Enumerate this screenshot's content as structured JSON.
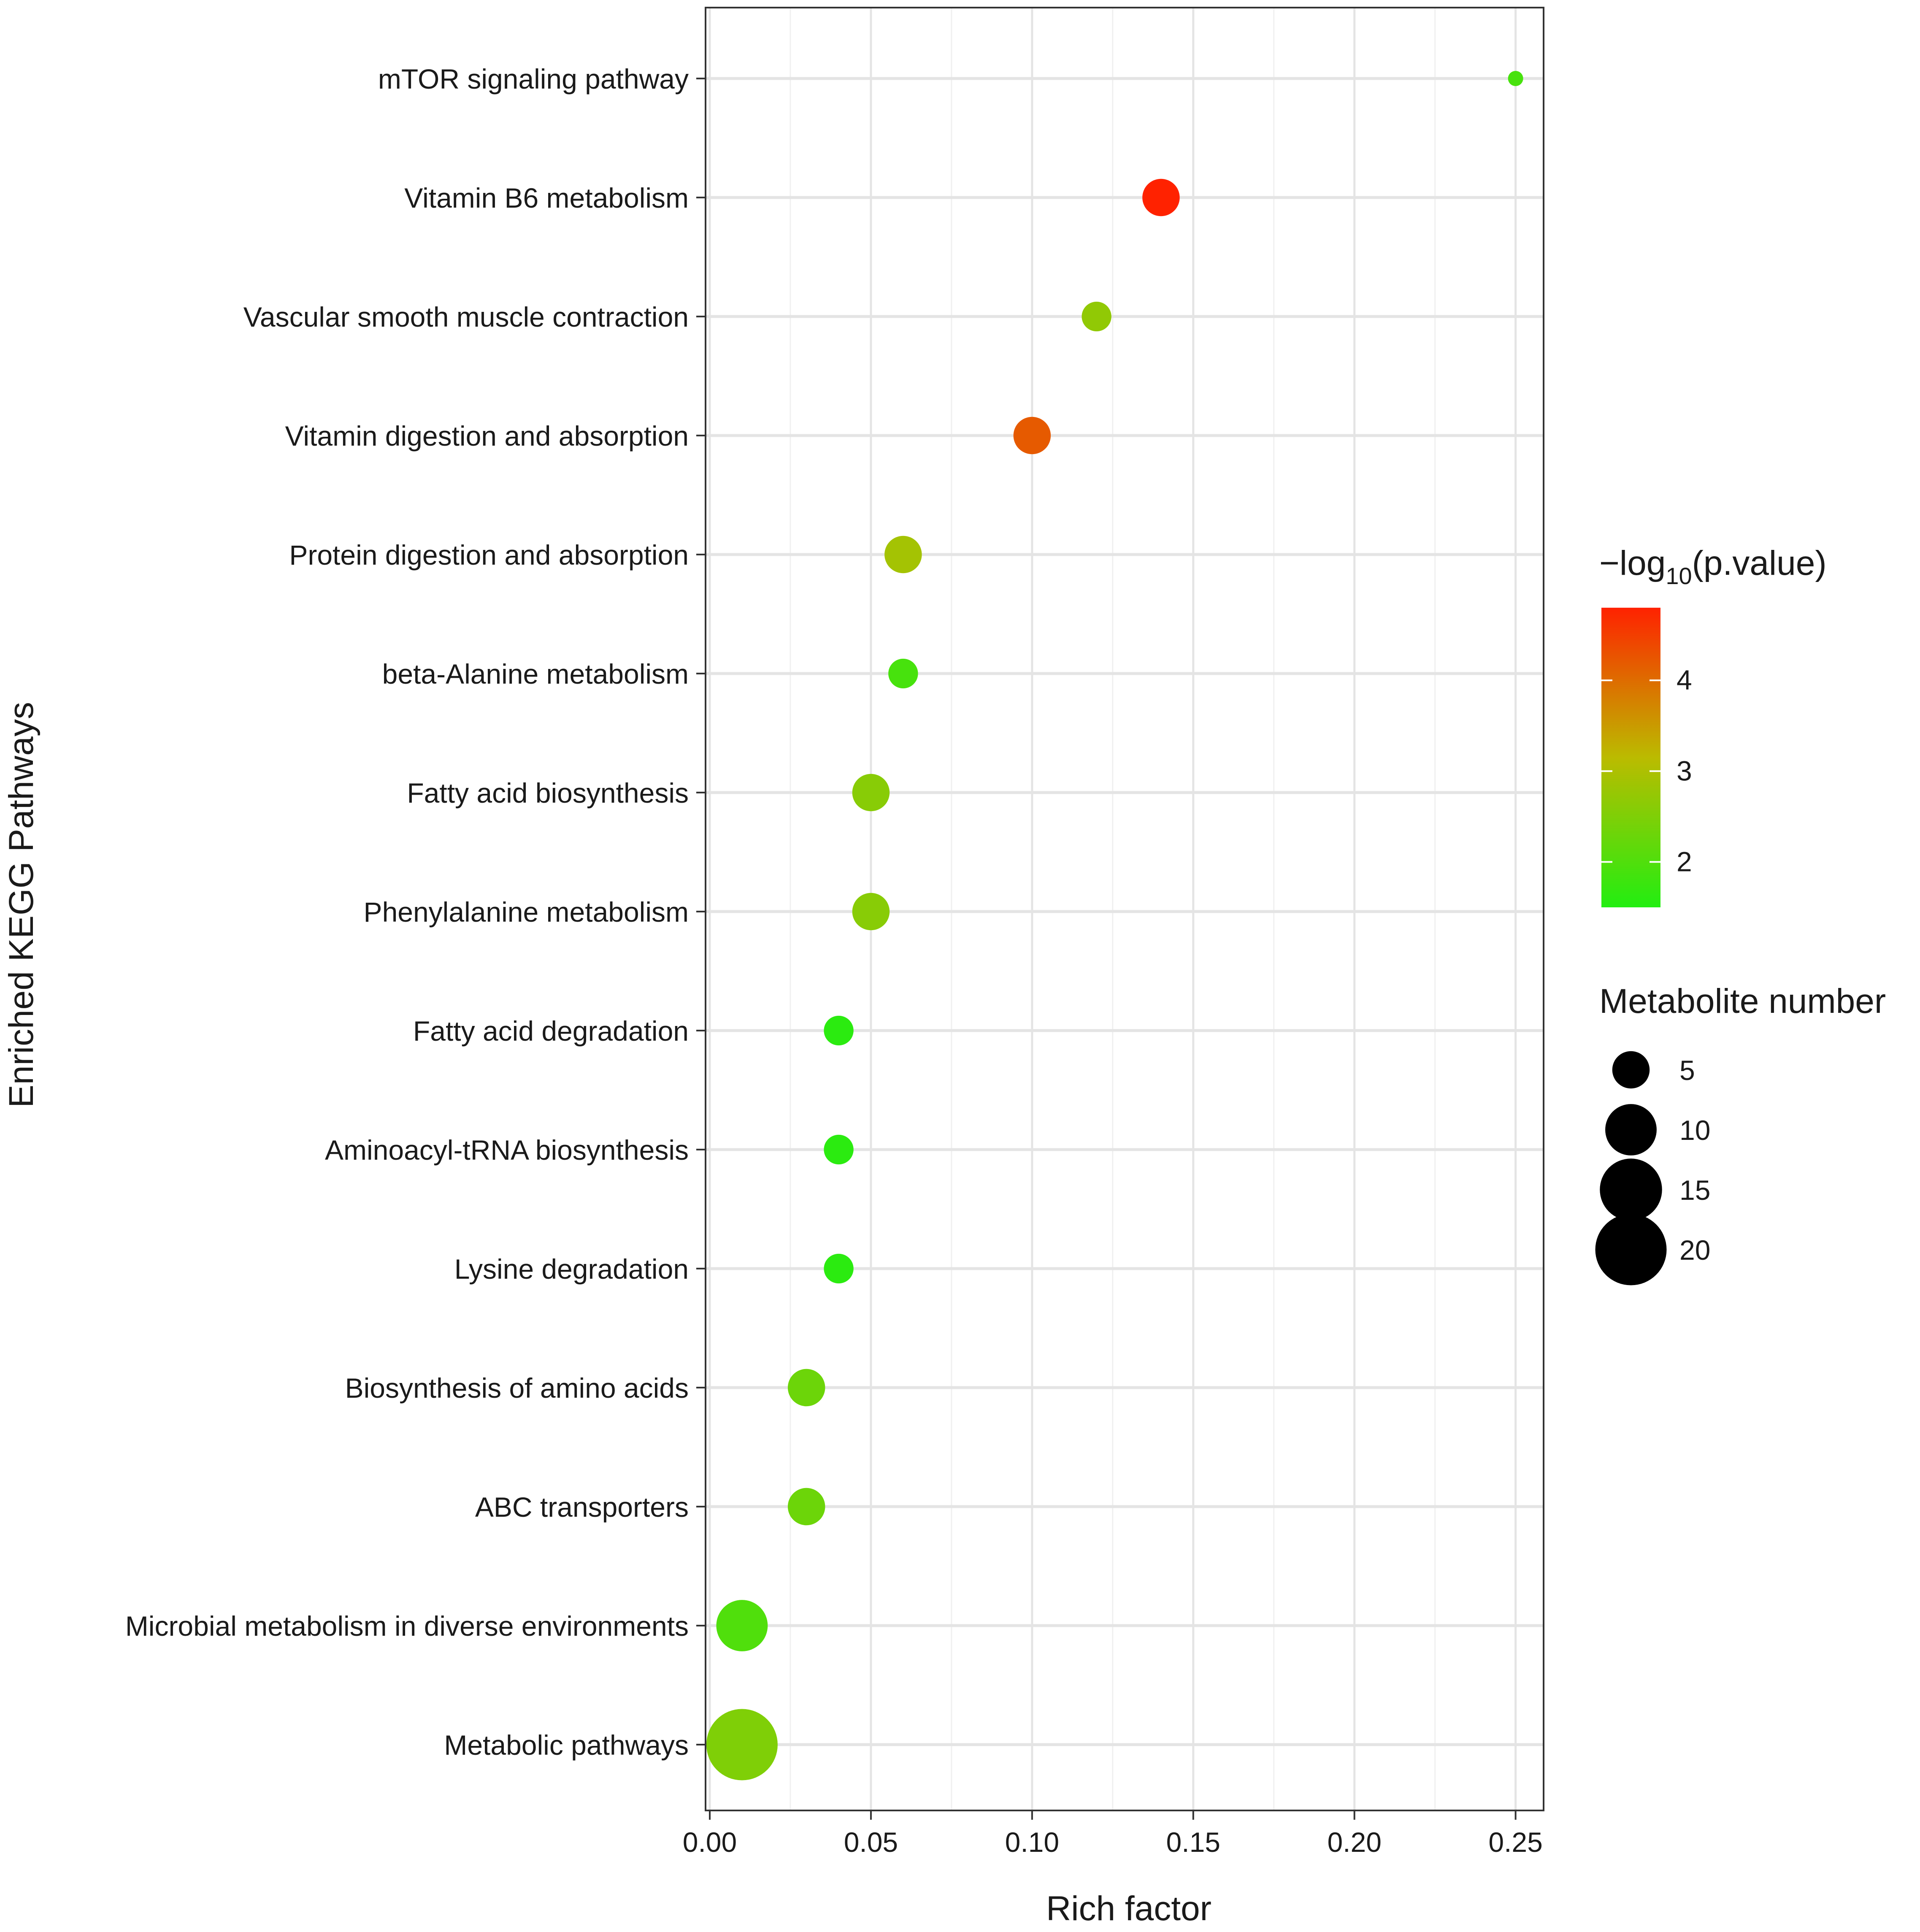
{
  "chart_data": {
    "type": "scatter",
    "title": "",
    "xlabel": "Rich factor",
    "ylabel": "Enriched KEGG Pathways",
    "xlim": [
      0.0,
      0.26
    ],
    "xticks": [
      0.0,
      0.05,
      0.1,
      0.15,
      0.2,
      0.25
    ],
    "xtick_labels": [
      "0.00",
      "0.05",
      "0.10",
      "0.15",
      "0.20",
      "0.25"
    ],
    "grid": true,
    "points": [
      {
        "pathway": "mTOR signaling pathway",
        "rich_factor": 0.25,
        "neg_log10_p": 1.9,
        "metabolite_number": 1
      },
      {
        "pathway": "Vitamin B6 metabolism",
        "rich_factor": 0.14,
        "neg_log10_p": 4.8,
        "metabolite_number": 5
      },
      {
        "pathway": "Vascular smooth muscle contraction",
        "rich_factor": 0.12,
        "neg_log10_p": 2.7,
        "metabolite_number": 3
      },
      {
        "pathway": "Vitamin digestion and absorption",
        "rich_factor": 0.1,
        "neg_log10_p": 4.2,
        "metabolite_number": 5
      },
      {
        "pathway": "Protein digestion and absorption",
        "rich_factor": 0.06,
        "neg_log10_p": 2.9,
        "metabolite_number": 5
      },
      {
        "pathway": "beta-Alanine metabolism",
        "rich_factor": 0.06,
        "neg_log10_p": 1.9,
        "metabolite_number": 3
      },
      {
        "pathway": "Fatty acid biosynthesis",
        "rich_factor": 0.05,
        "neg_log10_p": 2.6,
        "metabolite_number": 5
      },
      {
        "pathway": "Phenylalanine metabolism",
        "rich_factor": 0.05,
        "neg_log10_p": 2.6,
        "metabolite_number": 5
      },
      {
        "pathway": "Fatty acid degradation",
        "rich_factor": 0.04,
        "neg_log10_p": 1.6,
        "metabolite_number": 3
      },
      {
        "pathway": "Aminoacyl-tRNA biosynthesis",
        "rich_factor": 0.04,
        "neg_log10_p": 1.6,
        "metabolite_number": 3
      },
      {
        "pathway": "Lysine degradation",
        "rich_factor": 0.04,
        "neg_log10_p": 1.6,
        "metabolite_number": 3
      },
      {
        "pathway": "Biosynthesis of amino acids",
        "rich_factor": 0.03,
        "neg_log10_p": 2.3,
        "metabolite_number": 5
      },
      {
        "pathway": "ABC transporters",
        "rich_factor": 0.03,
        "neg_log10_p": 2.3,
        "metabolite_number": 5
      },
      {
        "pathway": "Microbial metabolism in diverse environments",
        "rich_factor": 0.01,
        "neg_log10_p": 2.0,
        "metabolite_number": 10
      },
      {
        "pathway": "Metabolic pathways",
        "rich_factor": 0.01,
        "neg_log10_p": 2.5,
        "metabolite_number": 20
      }
    ],
    "color_legend": {
      "title_prefix": "−log",
      "title_subscript": "10",
      "title_suffix": "(p.value)",
      "range": [
        1.5,
        4.8
      ],
      "ticks": [
        2,
        3,
        4
      ],
      "tick_labels": [
        "2",
        "3",
        "4"
      ],
      "colors": {
        "low": "#22ee11",
        "mid": "#bbbb00",
        "high": "#ff2200"
      }
    },
    "size_legend": {
      "title": "Metabolite number",
      "values": [
        5,
        10,
        15,
        20
      ],
      "labels": [
        "5",
        "10",
        "15",
        "20"
      ],
      "color": "#000000"
    },
    "legend_position": "right"
  }
}
